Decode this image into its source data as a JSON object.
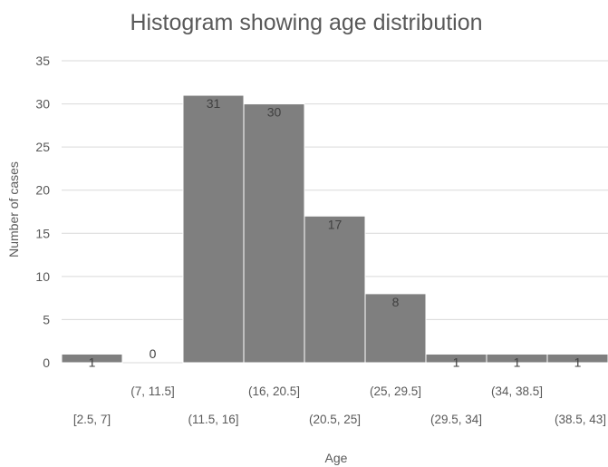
{
  "chart_data": {
    "type": "bar",
    "title": "Histogram showing age distribution",
    "xlabel": "Age",
    "ylabel": "Number of cases",
    "ylim": [
      0,
      35
    ],
    "yticks": [
      0,
      5,
      10,
      15,
      20,
      25,
      30,
      35
    ],
    "grid": true,
    "legend": "none",
    "bar_color": "#7f7f7f",
    "categories": [
      "[2.5, 7]",
      "(7, 11.5]",
      "(11.5, 16]",
      "(16, 20.5]",
      "(20.5, 25]",
      "(25, 29.5]",
      "(29.5, 34]",
      "(34, 38.5]",
      "(38.5, 43]"
    ],
    "values": [
      1,
      0,
      31,
      30,
      17,
      8,
      1,
      1,
      1
    ],
    "data_labels": true
  }
}
